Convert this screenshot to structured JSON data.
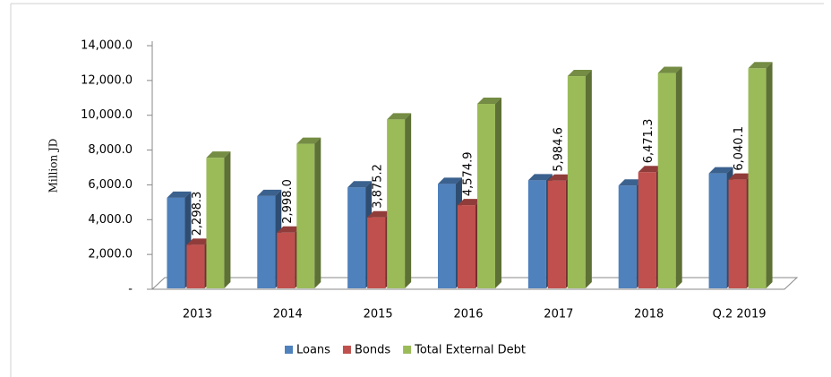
{
  "chart_data": {
    "type": "bar3d",
    "y_label": "Million JD",
    "categories": [
      "2013",
      "2014",
      "2015",
      "2016",
      "2017",
      "2018",
      "Q.2 2019"
    ],
    "series": [
      {
        "name": "Loans",
        "color": "#4f81bd",
        "values": [
          5000,
          5100,
          5600,
          5800,
          6000,
          5700,
          6400
        ]
      },
      {
        "name": "Bonds",
        "color": "#c0504d",
        "values": [
          2298.3,
          2998.0,
          3875.2,
          4574.9,
          5984.6,
          6471.3,
          6040.1
        ],
        "value_labels": [
          "2,298.3",
          "2,998.0",
          "3,875.2",
          "4,574.9",
          "5,984.6",
          "6,471.3",
          "6,040.1"
        ]
      },
      {
        "name": "Total External Debt",
        "color": "#9bbb59",
        "values": [
          7300,
          8100,
          9500,
          10400,
          11990,
          12170,
          12440
        ]
      }
    ],
    "ylim": [
      0,
      14000
    ],
    "yticks": [
      {
        "value": 0,
        "label": "-"
      },
      {
        "value": 2000,
        "label": "2,000.0"
      },
      {
        "value": 4000,
        "label": "4,000.0"
      },
      {
        "value": 6000,
        "label": "6,000.0"
      },
      {
        "value": 8000,
        "label": "8,000.0"
      },
      {
        "value": 10000,
        "label": "10,000.0"
      },
      {
        "value": 12000,
        "label": "12,000.0"
      },
      {
        "value": 14000,
        "label": "14,000.0"
      }
    ],
    "legend": "bottom"
  }
}
